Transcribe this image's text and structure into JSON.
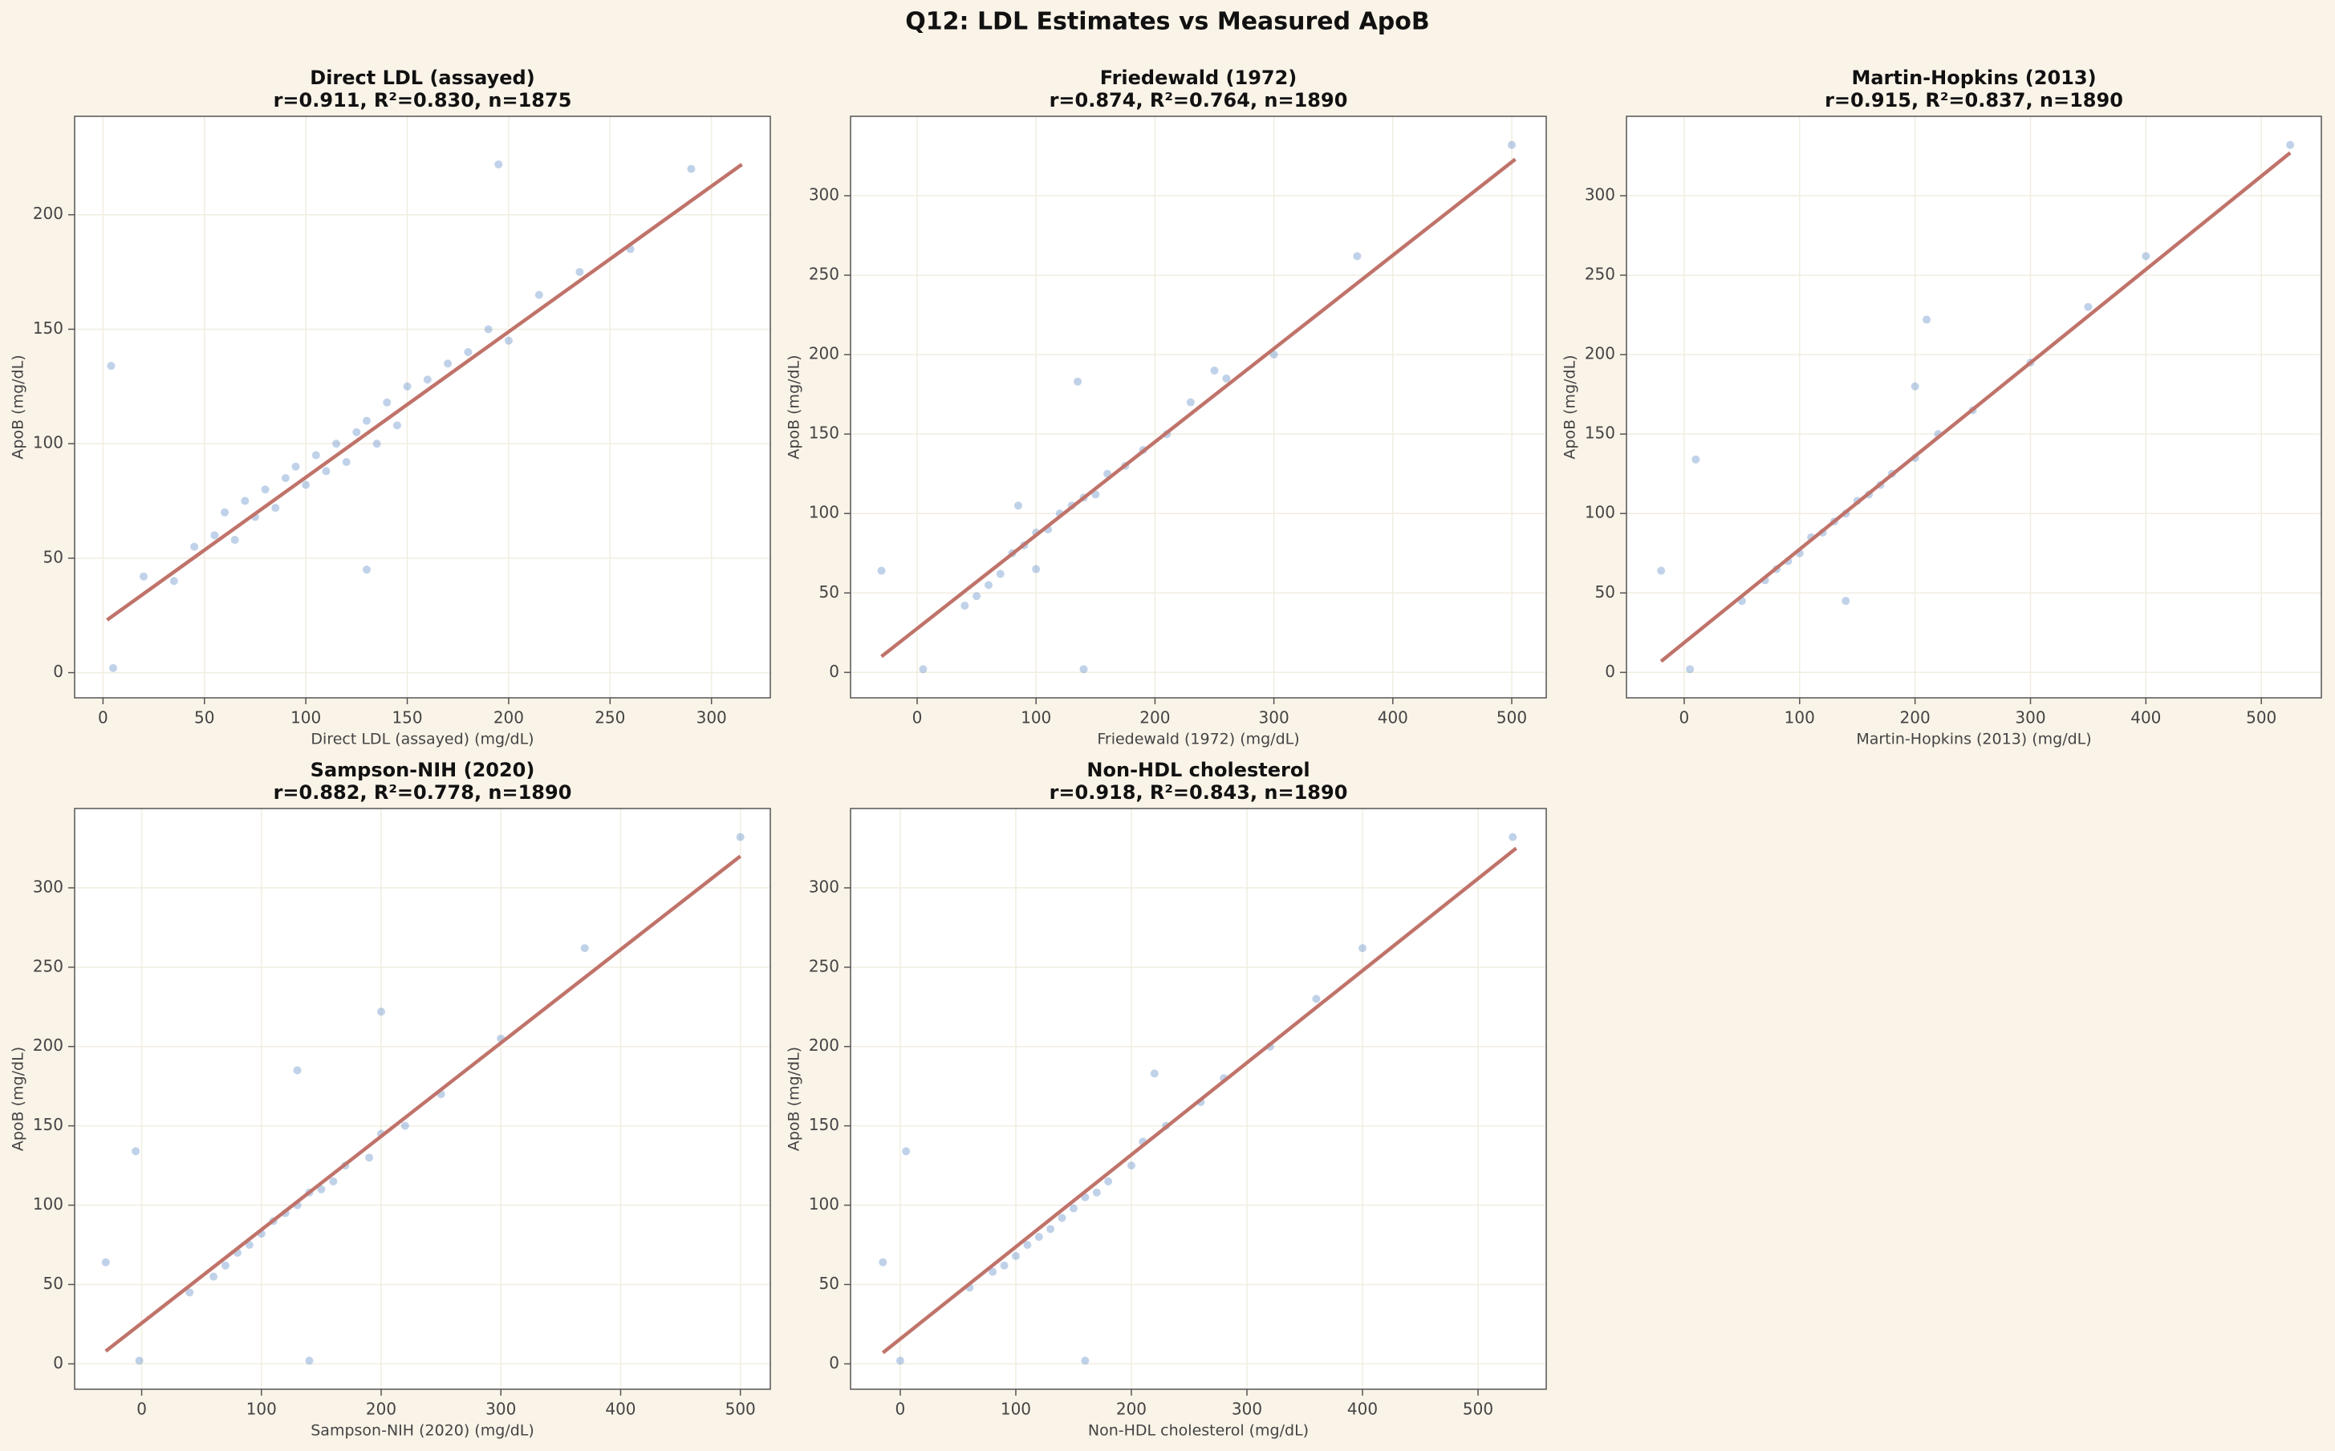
{
  "title": "Q12: LDL Estimates vs Measured ApoB",
  "chart_data": [
    {
      "type": "scatter",
      "title": "Direct LDL (assayed)",
      "subtitle": "r=0.911, R²=0.830, n=1875",
      "xlabel": "Direct LDL (assayed) (mg/dL)",
      "ylabel": "ApoB (mg/dL)",
      "xlim": [
        -14,
        329
      ],
      "ylim": [
        -11,
        243
      ],
      "xticks": [
        0,
        50,
        100,
        150,
        200,
        250,
        300
      ],
      "yticks": [
        0,
        50,
        100,
        150,
        200
      ],
      "grid": true,
      "series": [
        {
          "kind": "points",
          "color": "#4a7fc1",
          "x": [
            20,
            35,
            45,
            55,
            60,
            65,
            70,
            75,
            80,
            85,
            90,
            95,
            100,
            105,
            110,
            115,
            120,
            125,
            130,
            135,
            140,
            145,
            150,
            160,
            170,
            180,
            190,
            200,
            215,
            235,
            260,
            290,
            5,
            4,
            130,
            195
          ],
          "values": [
            42,
            40,
            55,
            60,
            70,
            58,
            75,
            68,
            80,
            72,
            85,
            90,
            82,
            95,
            88,
            100,
            92,
            105,
            110,
            100,
            118,
            108,
            125,
            128,
            135,
            140,
            150,
            145,
            165,
            175,
            185,
            220,
            2,
            134,
            45,
            222
          ]
        },
        {
          "kind": "line",
          "color": "#c0736a",
          "x": [
            2,
            315
          ],
          "values": [
            23,
            222
          ]
        }
      ]
    },
    {
      "type": "scatter",
      "title": "Friedewald (1972)",
      "subtitle": "r=0.874, R²=0.764, n=1890",
      "xlabel": "Friedewald (1972) (mg/dL)",
      "ylabel": "ApoB (mg/dL)",
      "xlim": [
        -56,
        529
      ],
      "ylim": [
        -16,
        350
      ],
      "xticks": [
        0,
        100,
        200,
        300,
        400,
        500
      ],
      "yticks": [
        0,
        50,
        100,
        150,
        200,
        250,
        300
      ],
      "grid": true,
      "series": [
        {
          "kind": "points",
          "color": "#4a7fc1",
          "x": [
            -30,
            5,
            40,
            50,
            60,
            70,
            80,
            90,
            100,
            110,
            120,
            130,
            140,
            150,
            160,
            175,
            190,
            210,
            230,
            260,
            300,
            370,
            500,
            135,
            140,
            85,
            100,
            250
          ],
          "values": [
            64,
            2,
            42,
            48,
            55,
            62,
            75,
            80,
            88,
            90,
            100,
            105,
            110,
            112,
            125,
            130,
            140,
            150,
            170,
            185,
            200,
            262,
            332,
            183,
            2,
            105,
            65,
            190
          ]
        },
        {
          "kind": "line",
          "color": "#c0736a",
          "x": [
            -30,
            503
          ],
          "values": [
            10,
            323
          ]
        }
      ]
    },
    {
      "type": "scatter",
      "title": "Martin-Hopkins (2013)",
      "subtitle": "r=0.915, R²=0.837, n=1890",
      "xlabel": "Martin-Hopkins (2013) (mg/dL)",
      "ylabel": "ApoB (mg/dL)",
      "xlim": [
        -50,
        552
      ],
      "ylim": [
        -16,
        350
      ],
      "xticks": [
        0,
        100,
        200,
        300,
        400,
        500
      ],
      "yticks": [
        0,
        50,
        100,
        150,
        200,
        250,
        300
      ],
      "grid": true,
      "series": [
        {
          "kind": "points",
          "color": "#4a7fc1",
          "x": [
            -20,
            5,
            10,
            50,
            70,
            80,
            90,
            100,
            110,
            120,
            130,
            140,
            150,
            160,
            170,
            180,
            200,
            220,
            250,
            300,
            350,
            400,
            525,
            140,
            210,
            200
          ],
          "values": [
            64,
            2,
            134,
            45,
            58,
            65,
            70,
            75,
            85,
            88,
            95,
            100,
            108,
            112,
            118,
            125,
            135,
            150,
            165,
            195,
            230,
            262,
            332,
            45,
            222,
            180
          ]
        },
        {
          "kind": "line",
          "color": "#c0736a",
          "x": [
            -20,
            525
          ],
          "values": [
            7,
            327
          ]
        }
      ]
    },
    {
      "type": "scatter",
      "title": "Sampson-NIH (2020)",
      "subtitle": "r=0.882, R²=0.778, n=1890",
      "xlabel": "Sampson-NIH (2020) (mg/dL)",
      "ylabel": "ApoB (mg/dL)",
      "xlim": [
        -56,
        525
      ],
      "ylim": [
        -16,
        350
      ],
      "xticks": [
        0,
        100,
        200,
        300,
        400,
        500
      ],
      "yticks": [
        0,
        50,
        100,
        150,
        200,
        250,
        300
      ],
      "grid": true,
      "series": [
        {
          "kind": "points",
          "color": "#4a7fc1",
          "x": [
            -30,
            -5,
            -2,
            40,
            60,
            70,
            80,
            90,
            100,
            110,
            120,
            130,
            140,
            150,
            160,
            170,
            190,
            200,
            220,
            250,
            300,
            370,
            500,
            130,
            140,
            200
          ],
          "values": [
            64,
            134,
            2,
            45,
            55,
            62,
            70,
            75,
            82,
            90,
            95,
            100,
            108,
            110,
            115,
            125,
            130,
            145,
            150,
            170,
            205,
            262,
            332,
            185,
            2,
            222
          ]
        },
        {
          "kind": "line",
          "color": "#c0736a",
          "x": [
            -30,
            500
          ],
          "values": [
            8,
            320
          ]
        }
      ]
    },
    {
      "type": "scatter",
      "title": "Non-HDL cholesterol",
      "subtitle": "r=0.918, R²=0.843, n=1890",
      "xlabel": "Non-HDL cholesterol (mg/dL)",
      "ylabel": "ApoB (mg/dL)",
      "xlim": [
        -43,
        559
      ],
      "ylim": [
        -16,
        350
      ],
      "xticks": [
        0,
        100,
        200,
        300,
        400,
        500
      ],
      "yticks": [
        0,
        50,
        100,
        150,
        200,
        250,
        300
      ],
      "grid": true,
      "series": [
        {
          "kind": "points",
          "color": "#4a7fc1",
          "x": [
            -15,
            5,
            0,
            60,
            80,
            90,
            100,
            110,
            120,
            130,
            140,
            150,
            160,
            170,
            180,
            200,
            210,
            230,
            260,
            280,
            320,
            360,
            400,
            530,
            160,
            220
          ],
          "values": [
            64,
            134,
            2,
            48,
            58,
            62,
            68,
            75,
            80,
            85,
            92,
            98,
            105,
            108,
            115,
            125,
            140,
            150,
            165,
            180,
            200,
            230,
            262,
            332,
            2,
            183
          ]
        },
        {
          "kind": "line",
          "color": "#c0736a",
          "x": [
            -15,
            533
          ],
          "values": [
            7,
            325
          ]
        }
      ]
    }
  ]
}
